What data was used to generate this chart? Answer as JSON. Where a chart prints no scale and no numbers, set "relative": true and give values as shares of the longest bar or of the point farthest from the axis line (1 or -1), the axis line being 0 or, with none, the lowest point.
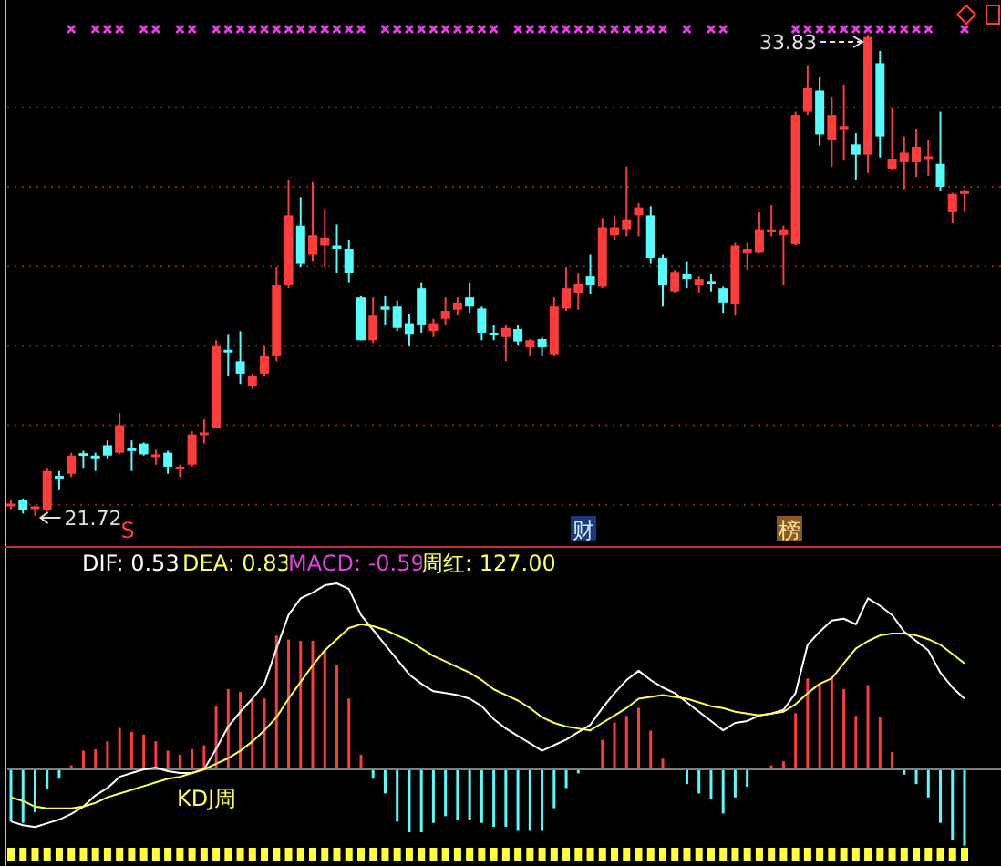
{
  "chart_data": [
    {
      "type": "candlestick",
      "grid": true,
      "yticks": [
        {
          "value": 22,
          "label": null
        },
        {
          "value": 24,
          "label": null
        },
        {
          "value": 26,
          "label": null
        },
        {
          "value": 28,
          "label": null
        },
        {
          "value": 30,
          "label": null
        },
        {
          "value": 32,
          "label": null
        }
      ],
      "categories": [
        null,
        null,
        null,
        null,
        null,
        null,
        null,
        null,
        null,
        null,
        null,
        null,
        null,
        null,
        null,
        null,
        null,
        null,
        null,
        null,
        null,
        null,
        null,
        null,
        null,
        null,
        null,
        null,
        null,
        null,
        null,
        null,
        null,
        null,
        null,
        null,
        null,
        null,
        null,
        null,
        null,
        null,
        null,
        null,
        null,
        null,
        null,
        null,
        null,
        null,
        null,
        null,
        null,
        null,
        null,
        null,
        null,
        null,
        null,
        null,
        null,
        null,
        null,
        null,
        null,
        null,
        null,
        null,
        null,
        null,
        null,
        null,
        null,
        null,
        null,
        null,
        null,
        null,
        null,
        null
      ],
      "ohlc": [
        [
          21.99,
          22.13,
          21.89,
          22.03
        ],
        [
          22.13,
          22.16,
          21.78,
          21.86
        ],
        [
          21.9,
          21.98,
          21.72,
          21.96
        ],
        [
          21.86,
          22.93,
          21.83,
          22.85
        ],
        [
          22.73,
          22.85,
          22.39,
          22.67
        ],
        [
          22.78,
          23.31,
          22.7,
          23.24
        ],
        [
          23.3,
          23.36,
          22.93,
          23.24
        ],
        [
          23.24,
          23.31,
          22.85,
          23.17
        ],
        [
          23.5,
          23.62,
          23.16,
          23.24
        ],
        [
          23.31,
          24.31,
          23.27,
          24.0
        ],
        [
          23.42,
          23.62,
          22.85,
          23.36
        ],
        [
          23.54,
          23.57,
          23.24,
          23.27
        ],
        [
          23.21,
          23.39,
          23.01,
          23.27
        ],
        [
          23.31,
          23.36,
          22.78,
          22.96
        ],
        [
          22.9,
          23.01,
          22.7,
          22.96
        ],
        [
          23.01,
          23.85,
          22.96,
          23.77
        ],
        [
          23.77,
          24.15,
          23.54,
          23.82
        ],
        [
          23.92,
          26.14,
          23.92,
          25.99
        ],
        [
          25.9,
          26.3,
          25.23,
          25.84
        ],
        [
          25.61,
          26.37,
          25.04,
          25.3
        ],
        [
          25.0,
          25.3,
          24.92,
          25.23
        ],
        [
          25.3,
          25.99,
          25.23,
          25.76
        ],
        [
          25.76,
          27.98,
          25.61,
          27.52
        ],
        [
          27.52,
          30.17,
          27.45,
          29.28
        ],
        [
          29.02,
          29.74,
          27.98,
          28.06
        ],
        [
          28.29,
          30.12,
          28.13,
          28.78
        ],
        [
          28.52,
          29.44,
          27.98,
          28.72
        ],
        [
          28.52,
          29.05,
          27.83,
          28.44
        ],
        [
          28.44,
          28.67,
          27.6,
          27.83
        ],
        [
          27.22,
          27.25,
          26.14,
          26.14
        ],
        [
          26.14,
          27.22,
          26.07,
          26.76
        ],
        [
          26.99,
          27.25,
          26.53,
          26.91
        ],
        [
          26.99,
          27.14,
          26.37,
          26.45
        ],
        [
          26.57,
          26.79,
          25.99,
          26.3
        ],
        [
          27.45,
          27.6,
          26.33,
          26.53
        ],
        [
          26.37,
          26.68,
          26.22,
          26.57
        ],
        [
          26.68,
          27.22,
          26.53,
          26.88
        ],
        [
          26.91,
          27.22,
          26.76,
          27.09
        ],
        [
          27.22,
          27.6,
          26.83,
          26.99
        ],
        [
          26.94,
          26.99,
          26.14,
          26.33
        ],
        [
          26.33,
          26.53,
          26.14,
          26.27
        ],
        [
          26.22,
          26.53,
          25.61,
          26.45
        ],
        [
          26.42,
          26.53,
          26.02,
          26.11
        ],
        [
          25.96,
          26.17,
          25.76,
          26.14
        ],
        [
          26.17,
          26.22,
          25.76,
          25.96
        ],
        [
          25.79,
          27.22,
          25.76,
          26.99
        ],
        [
          26.94,
          27.98,
          26.88,
          27.45
        ],
        [
          27.34,
          27.83,
          26.91,
          27.55
        ],
        [
          27.75,
          28.29,
          27.29,
          27.52
        ],
        [
          27.49,
          29.21,
          27.45,
          28.98
        ],
        [
          28.78,
          29.28,
          28.67,
          28.98
        ],
        [
          28.93,
          30.51,
          28.75,
          29.18
        ],
        [
          29.28,
          29.59,
          28.75,
          29.48
        ],
        [
          29.28,
          29.51,
          28.06,
          28.21
        ],
        [
          28.21,
          28.29,
          26.99,
          27.52
        ],
        [
          27.37,
          27.91,
          27.34,
          27.86
        ],
        [
          27.8,
          28.13,
          27.45,
          27.68
        ],
        [
          27.52,
          27.75,
          27.34,
          27.68
        ],
        [
          27.63,
          27.8,
          27.37,
          27.57
        ],
        [
          27.45,
          27.49,
          26.83,
          27.09
        ],
        [
          27.06,
          28.59,
          26.76,
          28.52
        ],
        [
          28.32,
          28.59,
          27.91,
          28.44
        ],
        [
          28.36,
          29.36,
          28.32,
          28.93
        ],
        [
          28.87,
          29.54,
          28.75,
          28.93
        ],
        [
          28.78,
          29.02,
          27.52,
          28.93
        ],
        [
          28.55,
          31.89,
          28.52,
          31.81
        ],
        [
          31.89,
          33.06,
          31.81,
          32.5
        ],
        [
          32.42,
          32.76,
          31.04,
          31.32
        ],
        [
          31.17,
          32.27,
          30.51,
          31.81
        ],
        [
          31.43,
          32.57,
          30.66,
          31.53
        ],
        [
          31.07,
          31.35,
          30.16,
          30.81
        ],
        [
          30.81,
          33.83,
          30.35,
          33.77
        ],
        [
          33.11,
          33.42,
          30.74,
          31.27
        ],
        [
          30.46,
          31.99,
          30.43,
          30.71
        ],
        [
          30.62,
          31.27,
          29.94,
          30.86
        ],
        [
          30.62,
          31.47,
          30.25,
          31.01
        ],
        [
          30.71,
          31.17,
          30.28,
          30.77
        ],
        [
          30.58,
          31.89,
          29.9,
          30.0
        ],
        [
          29.36,
          29.85,
          29.08,
          29.82
        ],
        [
          29.82,
          29.94,
          29.36,
          29.91
        ]
      ],
      "colors": [
        "#ff3c3c",
        "#54fcfc",
        "#ff3c3c",
        "#ff3c3c",
        "#54fcfc",
        "#ff3c3c",
        "#54fcfc",
        "#54fcfc",
        "#54fcfc",
        "#ff3c3c",
        "#54fcfc",
        "#54fcfc",
        "#ff3c3c",
        "#54fcfc",
        "#ff3c3c",
        "#ff3c3c",
        "#ff3c3c",
        "#ff3c3c",
        "#54fcfc",
        "#54fcfc",
        "#ff3c3c",
        "#ff3c3c",
        "#ff3c3c",
        "#ff3c3c",
        "#54fcfc",
        "#ff3c3c",
        "#ff3c3c",
        "#54fcfc",
        "#54fcfc",
        "#54fcfc",
        "#ff3c3c",
        "#54fcfc",
        "#54fcfc",
        "#54fcfc",
        "#54fcfc",
        "#ff3c3c",
        "#ff3c3c",
        "#ff3c3c",
        "#54fcfc",
        "#54fcfc",
        "#54fcfc",
        "#ff3c3c",
        "#54fcfc",
        "#ff3c3c",
        "#54fcfc",
        "#ff3c3c",
        "#ff3c3c",
        "#ff3c3c",
        "#54fcfc",
        "#ff3c3c",
        "#ff3c3c",
        "#ff3c3c",
        "#ff3c3c",
        "#54fcfc",
        "#54fcfc",
        "#ff3c3c",
        "#54fcfc",
        "#ff3c3c",
        "#54fcfc",
        "#54fcfc",
        "#ff3c3c",
        "#ff3c3c",
        "#ff3c3c",
        "#ff3c3c",
        "#ff3c3c",
        "#ff3c3c",
        "#ff3c3c",
        "#54fcfc",
        "#ff3c3c",
        "#ff3c3c",
        "#54fcfc",
        "#ff3c3c",
        "#54fcfc",
        "#ff3c3c",
        "#ff3c3c",
        "#ff3c3c",
        "#ff3c3c",
        "#54fcfc",
        "#ff3c3c",
        "#ff3c3c"
      ],
      "annotations": [
        "33.83",
        "21.72",
        "S",
        "财",
        "榜"
      ]
    },
    {
      "type": "line",
      "relative": true,
      "categories": [
        null,
        null,
        null,
        null,
        null,
        null,
        null,
        null,
        null,
        null,
        null,
        null,
        null,
        null,
        null,
        null,
        null,
        null,
        null,
        null,
        null,
        null,
        null,
        null,
        null,
        null,
        null,
        null,
        null,
        null,
        null,
        null,
        null,
        null,
        null,
        null,
        null,
        null,
        null,
        null,
        null,
        null,
        null,
        null,
        null,
        null,
        null,
        null,
        null,
        null,
        null,
        null,
        null,
        null,
        null,
        null,
        null,
        null,
        null,
        null,
        null,
        null,
        null,
        null,
        null,
        null,
        null,
        null,
        null,
        null,
        null,
        null,
        null,
        null,
        null,
        null,
        null,
        null,
        null,
        null
      ],
      "series": [
        {
          "color": "#ffffff",
          "values": [
            -0.28,
            -0.3,
            -0.31,
            -0.29,
            -0.27,
            -0.24,
            -0.2,
            -0.14,
            -0.1,
            -0.04,
            -0.02,
            0.0,
            0.01,
            -0.01,
            -0.02,
            -0.02,
            0.0,
            0.11,
            0.23,
            0.31,
            0.38,
            0.46,
            0.65,
            0.83,
            0.92,
            0.95,
            0.99,
            1.0,
            0.97,
            0.83,
            0.75,
            0.67,
            0.59,
            0.51,
            0.46,
            0.42,
            0.41,
            0.4,
            0.38,
            0.34,
            0.27,
            0.22,
            0.18,
            0.14,
            0.1,
            0.13,
            0.16,
            0.2,
            0.24,
            0.33,
            0.41,
            0.48,
            0.53,
            0.48,
            0.44,
            0.41,
            0.36,
            0.31,
            0.26,
            0.21,
            0.25,
            0.26,
            0.29,
            0.3,
            0.32,
            0.41,
            0.67,
            0.74,
            0.8,
            0.81,
            0.78,
            0.92,
            0.88,
            0.83,
            0.74,
            0.69,
            0.64,
            0.52,
            0.44,
            0.38
          ]
        },
        {
          "color": "#ffff54",
          "values": [
            -0.15,
            -0.17,
            -0.2,
            -0.21,
            -0.21,
            -0.21,
            -0.2,
            -0.18,
            -0.15,
            -0.13,
            -0.11,
            -0.09,
            -0.07,
            -0.05,
            -0.04,
            -0.02,
            0.0,
            0.03,
            0.06,
            0.1,
            0.15,
            0.21,
            0.28,
            0.38,
            0.47,
            0.56,
            0.64,
            0.7,
            0.76,
            0.78,
            0.77,
            0.75,
            0.72,
            0.69,
            0.65,
            0.61,
            0.58,
            0.55,
            0.52,
            0.48,
            0.43,
            0.4,
            0.37,
            0.33,
            0.28,
            0.25,
            0.23,
            0.22,
            0.21,
            0.25,
            0.29,
            0.33,
            0.38,
            0.39,
            0.4,
            0.39,
            0.38,
            0.36,
            0.34,
            0.33,
            0.31,
            0.3,
            0.29,
            0.3,
            0.31,
            0.35,
            0.41,
            0.46,
            0.49,
            0.57,
            0.65,
            0.69,
            0.72,
            0.73,
            0.73,
            0.72,
            0.7,
            0.67,
            0.62,
            0.57
          ]
        }
      ],
      "annotations": [
        "DIF: 0.53",
        "DEA: 0.83",
        "MACD: -0.59",
        "周红: 127.00",
        "KDJ周"
      ]
    },
    {
      "type": "bar",
      "relative": true,
      "categories": [
        null,
        null,
        null,
        null,
        null,
        null,
        null,
        null,
        null,
        null,
        null,
        null,
        null,
        null,
        null,
        null,
        null,
        null,
        null,
        null,
        null,
        null,
        null,
        null,
        null,
        null,
        null,
        null,
        null,
        null,
        null,
        null,
        null,
        null,
        null,
        null,
        null,
        null,
        null,
        null,
        null,
        null,
        null,
        null,
        null,
        null,
        null,
        null,
        null,
        null,
        null,
        null,
        null,
        null,
        null,
        null,
        null,
        null,
        null,
        null,
        null,
        null,
        null,
        null,
        null,
        null,
        null,
        null,
        null,
        null,
        null,
        null,
        null,
        null,
        null,
        null,
        null,
        null,
        null,
        null
      ],
      "values": [
        -0.39,
        -0.4,
        -0.32,
        -0.15,
        -0.07,
        0.03,
        0.14,
        0.15,
        0.21,
        0.31,
        0.28,
        0.26,
        0.21,
        0.14,
        0.11,
        0.15,
        0.18,
        0.47,
        0.6,
        0.58,
        0.53,
        0.53,
        1.0,
        0.97,
        0.96,
        0.96,
        0.89,
        0.78,
        0.53,
        0.11,
        -0.07,
        -0.18,
        -0.39,
        -0.47,
        -0.47,
        -0.4,
        -0.35,
        -0.38,
        -0.38,
        -0.4,
        -0.43,
        -0.43,
        -0.46,
        -0.46,
        -0.46,
        -0.29,
        -0.14,
        -0.03,
        null,
        0.22,
        0.35,
        0.4,
        0.46,
        0.29,
        0.08,
        null,
        -0.11,
        -0.18,
        -0.22,
        -0.33,
        -0.21,
        -0.13,
        null,
        0.03,
        0.06,
        0.42,
        0.68,
        0.64,
        0.68,
        0.6,
        0.4,
        0.63,
        0.39,
        0.13,
        -0.04,
        -0.11,
        -0.21,
        -0.4,
        -0.53,
        -0.57
      ],
      "colors": [
        "#54fcfc",
        "#54fcfc",
        "#54fcfc",
        "#54fcfc",
        "#54fcfc",
        "#ff3c3c",
        "#ff3c3c",
        "#ff3c3c",
        "#ff3c3c",
        "#ff3c3c",
        "#ff3c3c",
        "#ff3c3c",
        "#ff3c3c",
        "#ff3c3c",
        "#ff3c3c",
        "#ff3c3c",
        "#ff3c3c",
        "#ff3c3c",
        "#ff3c3c",
        "#ff3c3c",
        "#ff3c3c",
        "#ff3c3c",
        "#ff3c3c",
        "#ff3c3c",
        "#ff3c3c",
        "#ff3c3c",
        "#ff3c3c",
        "#ff3c3c",
        "#ff3c3c",
        "#ff3c3c",
        "#54fcfc",
        "#54fcfc",
        "#54fcfc",
        "#54fcfc",
        "#54fcfc",
        "#54fcfc",
        "#54fcfc",
        "#54fcfc",
        "#54fcfc",
        "#54fcfc",
        "#54fcfc",
        "#54fcfc",
        "#54fcfc",
        "#54fcfc",
        "#54fcfc",
        "#54fcfc",
        "#54fcfc",
        "#54fcfc",
        null,
        "#ff3c3c",
        "#ff3c3c",
        "#ff3c3c",
        "#ff3c3c",
        "#ff3c3c",
        "#ff3c3c",
        null,
        "#54fcfc",
        "#54fcfc",
        "#54fcfc",
        "#54fcfc",
        "#54fcfc",
        "#54fcfc",
        null,
        "#ff3c3c",
        "#ff3c3c",
        "#ff3c3c",
        "#ff3c3c",
        "#ff3c3c",
        "#ff3c3c",
        "#ff3c3c",
        "#ff3c3c",
        "#ff3c3c",
        "#ff3c3c",
        "#ff3c3c",
        "#54fcfc",
        "#54fcfc",
        "#54fcfc",
        "#54fcfc",
        "#54fcfc",
        "#54fcfc"
      ]
    }
  ]
}
